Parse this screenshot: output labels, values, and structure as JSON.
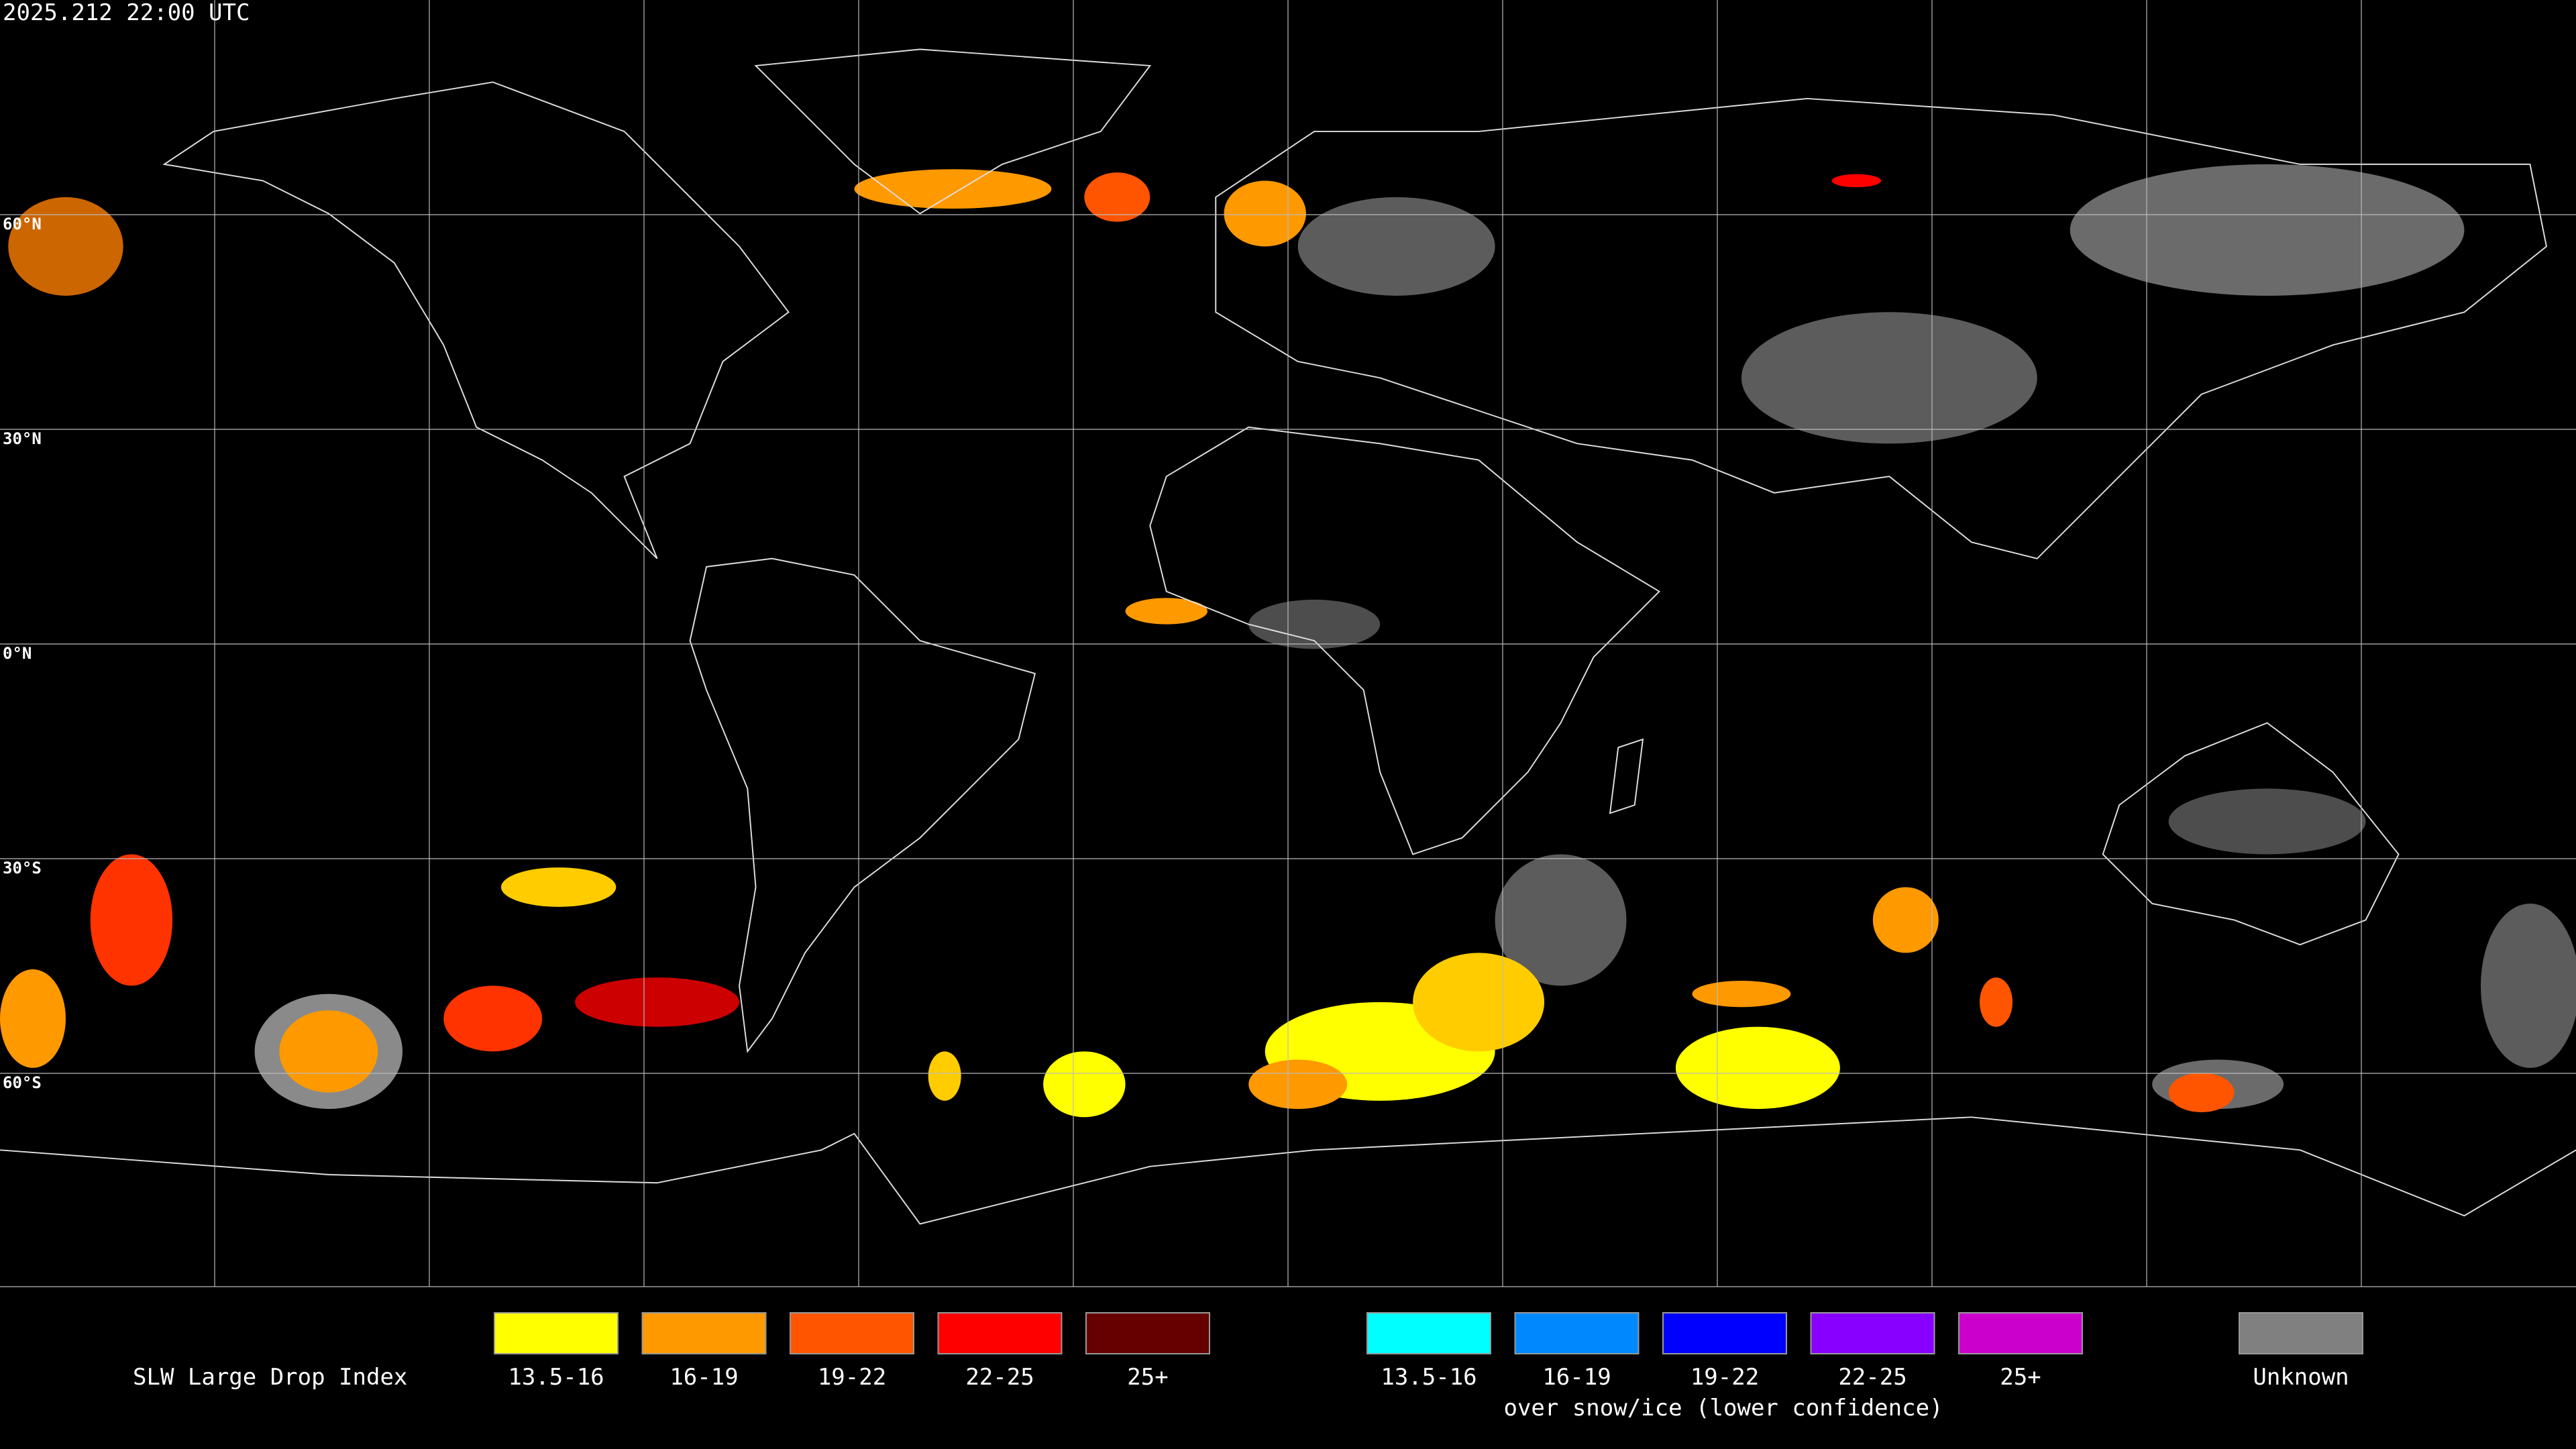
{
  "header": {
    "timestamp": "2025.212 22:00 UTC"
  },
  "map": {
    "lat_labels": [
      "60°N",
      "30°N",
      "0°N",
      "30°S",
      "60°S"
    ]
  },
  "legend": {
    "title": "SLW Large Drop Index",
    "items": [
      {
        "label": "13.5-16",
        "color": "#ffff00"
      },
      {
        "label": "16-19",
        "color": "#ff9900"
      },
      {
        "label": "19-22",
        "color": "#ff5500"
      },
      {
        "label": "22-25",
        "color": "#ff0000"
      },
      {
        "label": "25+",
        "color": "#660000"
      }
    ],
    "snow_items": [
      {
        "label": "13.5-16",
        "color": "#00ffff"
      },
      {
        "label": "16-19",
        "color": "#0088ff"
      },
      {
        "label": "19-22",
        "color": "#0000ff"
      },
      {
        "label": "22-25",
        "color": "#8800ff"
      },
      {
        "label": "25+",
        "color": "#cc00cc"
      }
    ],
    "note": "over snow/ice (lower confidence)",
    "unknown": {
      "label": "Unknown",
      "color": "#808080"
    }
  }
}
